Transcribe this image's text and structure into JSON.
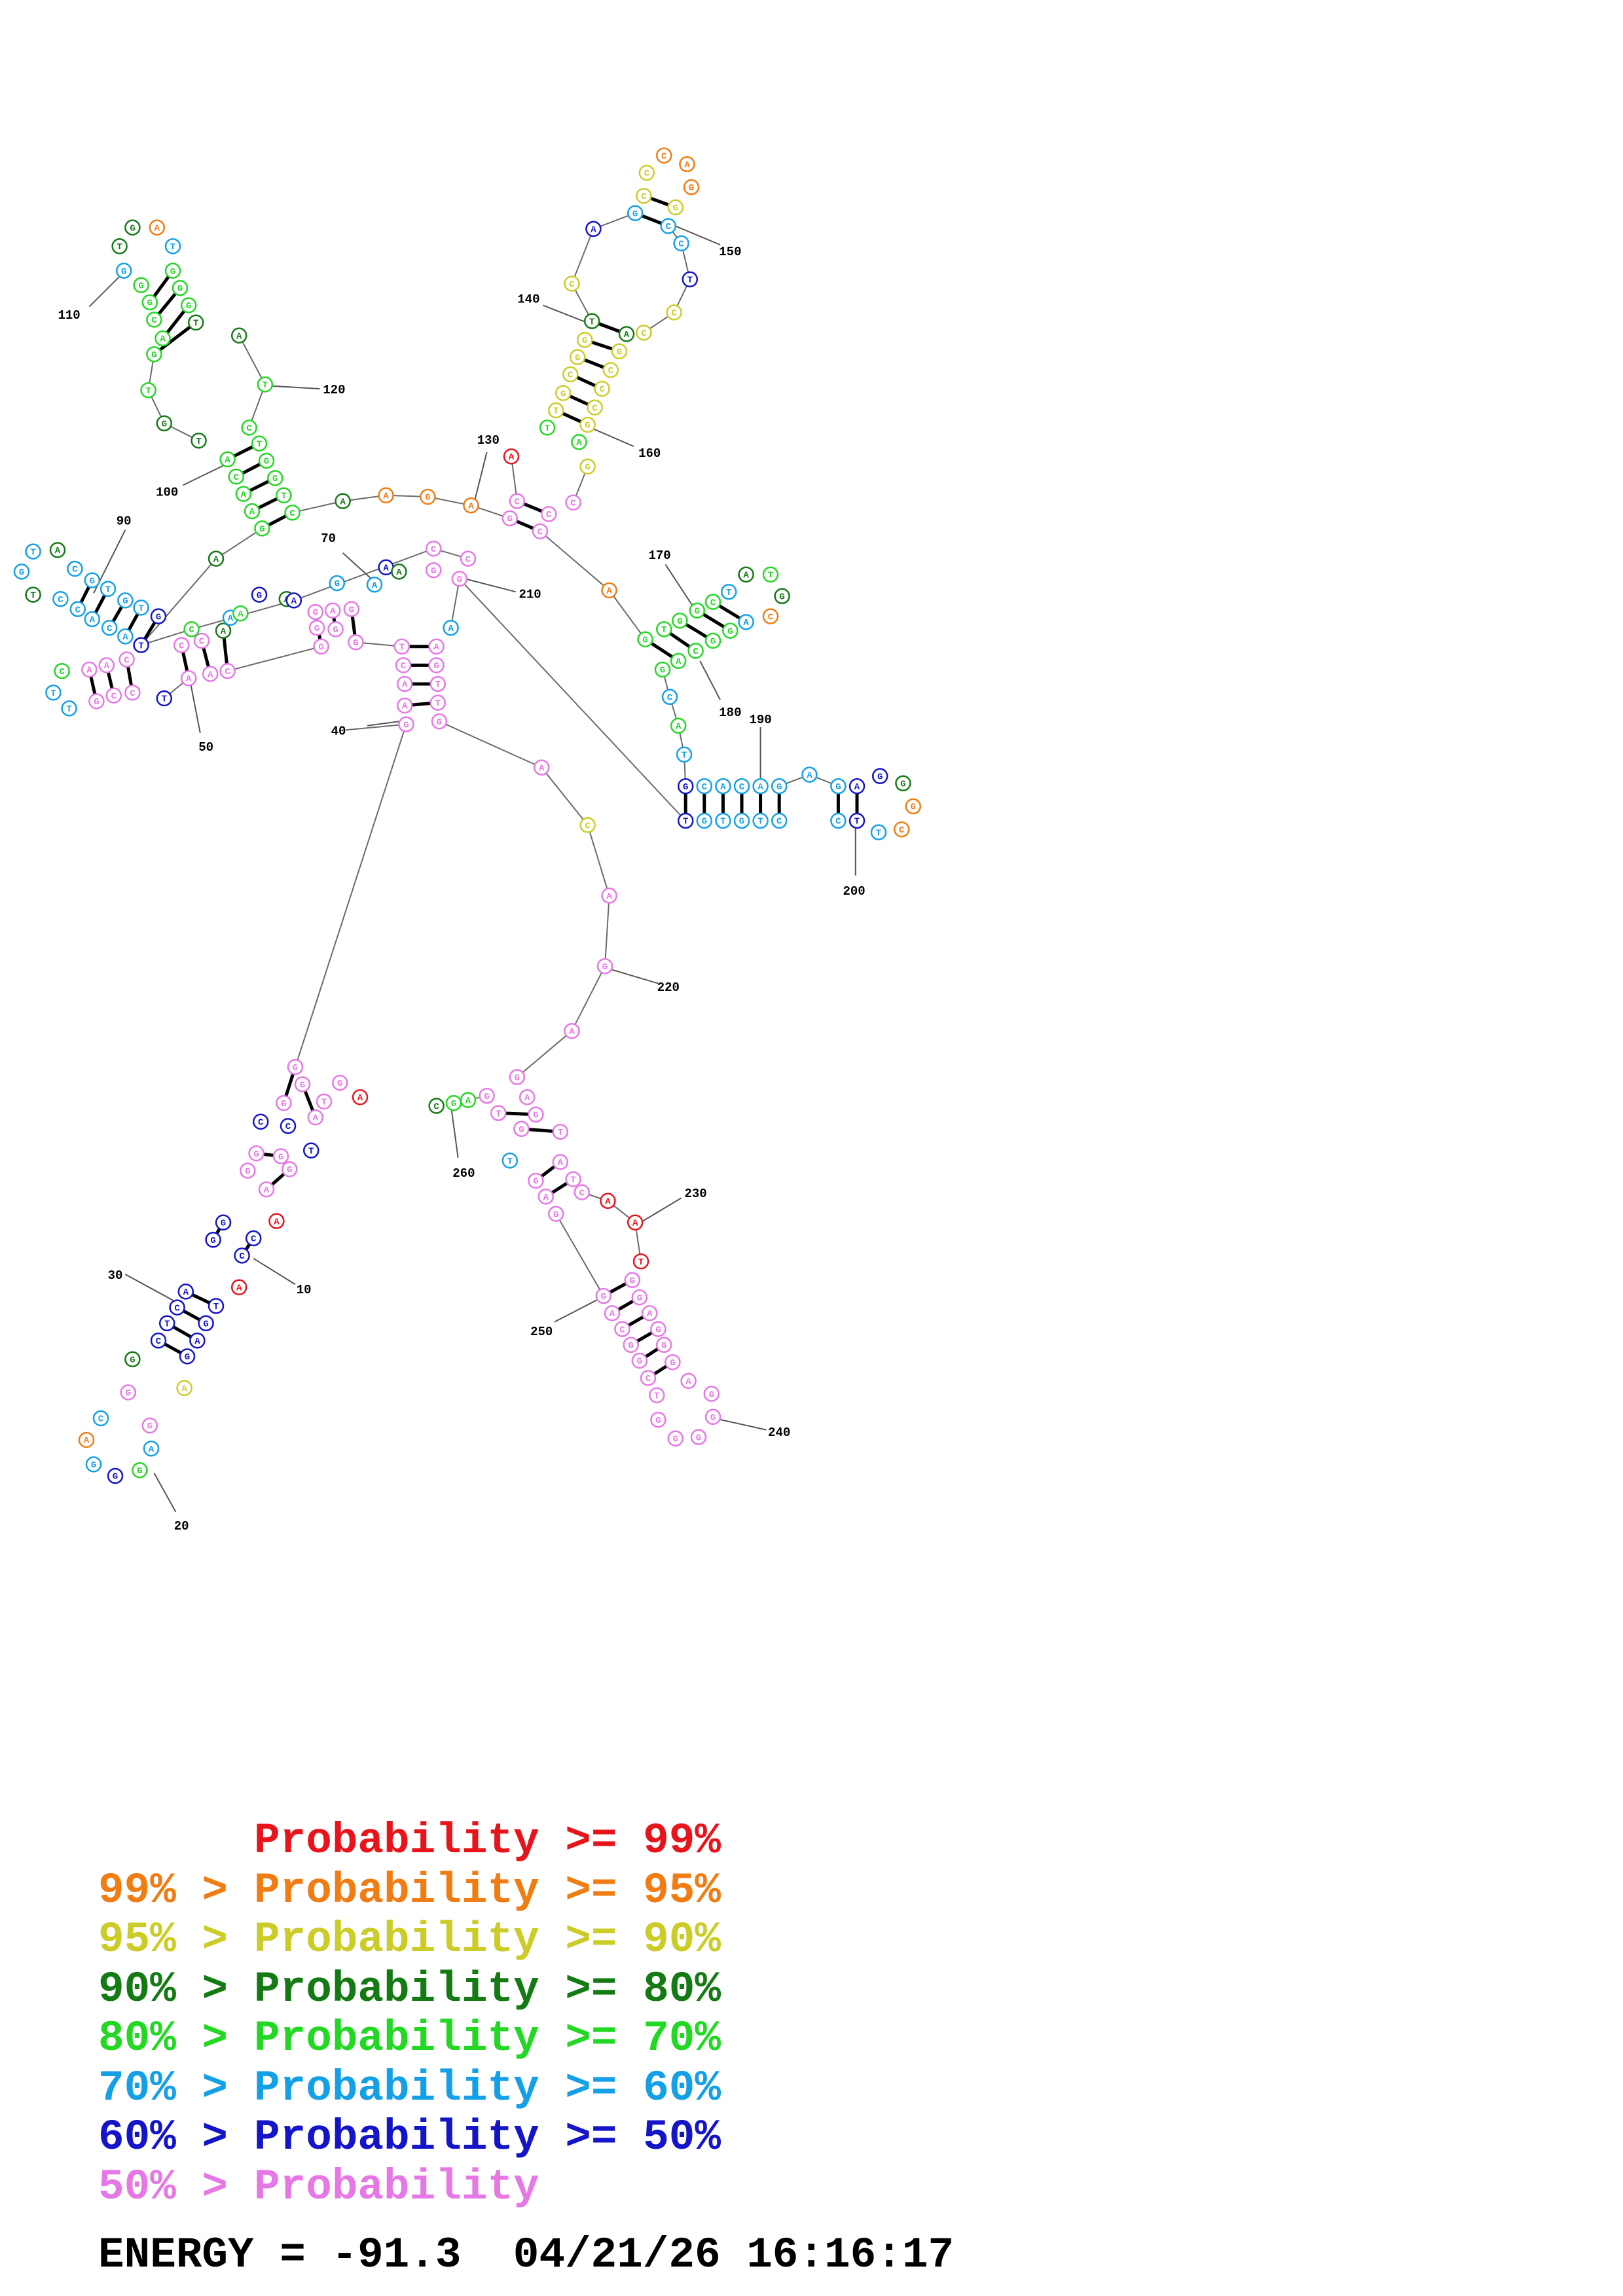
{
  "colors": {
    "red": "#e8141c",
    "orange": "#f07d14",
    "yellow": "#cccc28",
    "darkgreen": "#147a14",
    "green": "#23d823",
    "cyan": "#14a0e6",
    "blue": "#1414c8",
    "pink": "#e678e6"
  },
  "legend": [
    {
      "prefix": "",
      "label": "Probability",
      "op": ">=",
      "threshold": "99%",
      "color": "red"
    },
    {
      "prefix": "99% >",
      "label": "Probability",
      "op": ">=",
      "threshold": "95%",
      "color": "orange"
    },
    {
      "prefix": "95% >",
      "label": "Probability",
      "op": ">=",
      "threshold": "90%",
      "color": "yellow"
    },
    {
      "prefix": "90% >",
      "label": "Probability",
      "op": ">=",
      "threshold": "80%",
      "color": "darkgreen"
    },
    {
      "prefix": "80% >",
      "label": "Probability",
      "op": ">=",
      "threshold": "70%",
      "color": "green"
    },
    {
      "prefix": "70% >",
      "label": "Probability",
      "op": ">=",
      "threshold": "60%",
      "color": "cyan"
    },
    {
      "prefix": "60% >",
      "label": "Probability",
      "op": ">=",
      "threshold": "50%",
      "color": "blue"
    },
    {
      "prefix": "50% >",
      "label": "Probability",
      "op": "",
      "threshold": "",
      "color": "pink"
    }
  ],
  "footer": {
    "energy_label": "ENERGY =",
    "energy_value": "-91.3",
    "date": "04/21/26",
    "time": "16:16:17"
  },
  "position_labels": [
    "10",
    "20",
    "30",
    "40",
    "50",
    "70",
    "90",
    "100",
    "110",
    "120",
    "130",
    "140",
    "150",
    "160",
    "170",
    "180",
    "190",
    "200",
    "210",
    "220",
    "230",
    "240",
    "250",
    "260"
  ]
}
